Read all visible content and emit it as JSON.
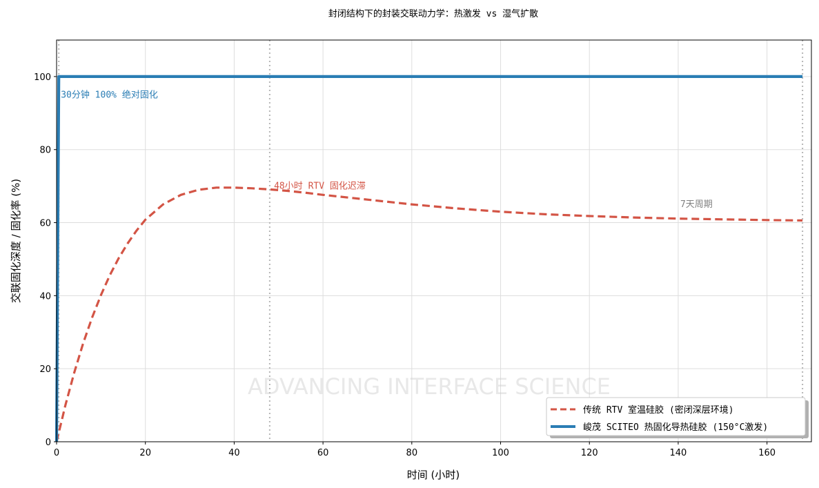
{
  "chart_data": {
    "type": "line",
    "title": "封闭结构下的封装交联动力学：热激发 vs 湿气扩散",
    "xlabel": "时间 (小时)",
    "ylabel": "交联固化深度 / 固化率 (%)",
    "xlim": [
      0,
      170
    ],
    "ylim": [
      0,
      110
    ],
    "xticks": [
      0,
      20,
      40,
      60,
      80,
      100,
      120,
      140,
      160
    ],
    "yticks": [
      0,
      20,
      40,
      60,
      80,
      100
    ],
    "grid": true,
    "legend_position": "lower-right",
    "watermark": "ADVANCING INTERFACE SCIENCE",
    "vlines": [
      0.5,
      48,
      168
    ],
    "series": [
      {
        "name": "传统 RTV 室温硅胶 (密闭深层环境)",
        "color": "#d35445",
        "style": "dashed",
        "x": [
          0,
          2,
          4,
          6,
          8,
          10,
          12,
          14,
          16,
          18,
          20,
          24,
          28,
          32,
          36,
          40,
          44,
          48,
          52,
          56,
          60,
          70,
          80,
          90,
          100,
          110,
          120,
          130,
          140,
          150,
          160,
          168
        ],
        "y": [
          0,
          10.1,
          19.0,
          27.0,
          34.0,
          40.2,
          45.6,
          50.3,
          54.3,
          57.8,
          60.8,
          65.0,
          67.6,
          69.0,
          69.6,
          69.6,
          69.4,
          69.1,
          68.7,
          68.2,
          67.6,
          66.3,
          65.0,
          63.9,
          63.0,
          62.3,
          61.8,
          61.4,
          61.1,
          60.9,
          60.7,
          60.6
        ]
      },
      {
        "name": "峻茂 SCITEO 热固化导热硅胶 (150°C激发)",
        "color": "#2a7db4",
        "style": "solid",
        "x": [
          0,
          0.5,
          1,
          168
        ],
        "y": [
          0,
          100,
          100,
          100
        ]
      }
    ],
    "annotations": [
      {
        "text": "30分钟 100% 绝对固化",
        "x": 0.5,
        "y": 95,
        "color": "#2a7db4"
      },
      {
        "text": "48小时 RTV 固化迟滞",
        "x": 48.5,
        "y": 70,
        "color": "#d35445"
      },
      {
        "text": "7天周期",
        "x": 140,
        "y": 65,
        "color": "#808080"
      }
    ]
  }
}
